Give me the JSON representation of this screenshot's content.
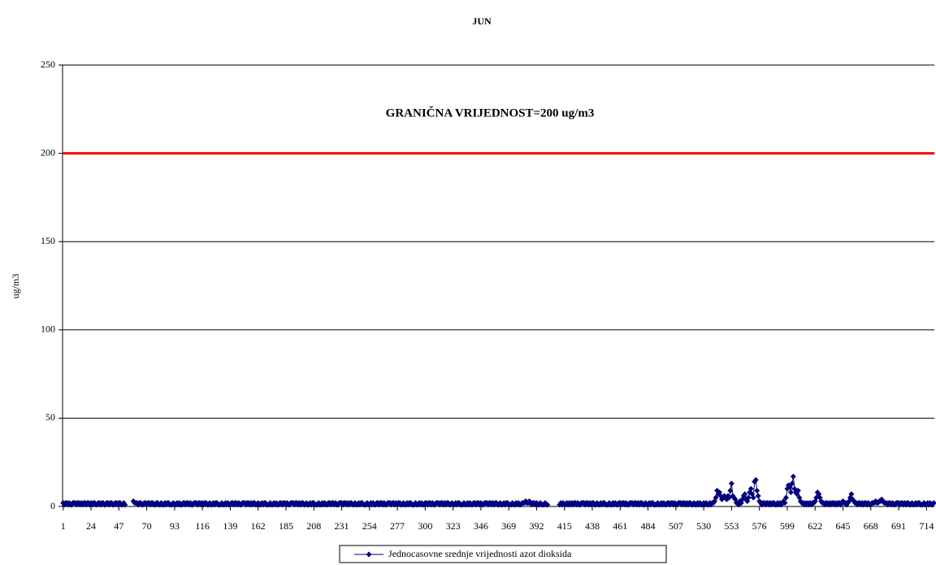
{
  "chart_data": {
    "type": "line",
    "title": "JUN",
    "ylabel": "ug/m3",
    "annotation": "GRANIČNA VRIJEDNOST=200 ug/m3",
    "threshold": 200,
    "threshold_color": "#ff0000",
    "ylim": [
      0,
      250
    ],
    "yticks": [
      0,
      50,
      100,
      150,
      200,
      250
    ],
    "grid": true,
    "xlim": [
      0.5,
      720.5
    ],
    "xticks": [
      1,
      24,
      47,
      70,
      93,
      116,
      139,
      162,
      185,
      208,
      231,
      254,
      277,
      300,
      323,
      346,
      369,
      392,
      415,
      438,
      461,
      484,
      507,
      530,
      553,
      576,
      599,
      622,
      645,
      668,
      691,
      714
    ],
    "x": [
      1,
      2,
      3,
      4,
      5,
      6,
      7,
      8,
      9,
      10,
      11,
      12,
      13,
      14,
      15,
      16,
      17,
      18,
      19,
      20,
      21,
      22,
      23,
      24,
      25,
      26,
      27,
      28,
      29,
      30,
      31,
      32,
      33,
      34,
      35,
      36,
      37,
      38,
      39,
      40,
      41,
      42,
      43,
      44,
      45,
      46,
      47,
      48,
      49,
      50,
      51,
      52,
      53,
      54,
      55,
      56,
      57,
      58,
      59,
      60,
      61,
      62,
      63,
      64,
      65,
      66,
      67,
      68,
      69,
      70,
      71,
      72,
      73,
      74,
      75,
      76,
      77,
      78,
      79,
      80,
      81,
      82,
      83,
      84,
      85,
      86,
      87,
      88,
      89,
      90,
      91,
      92,
      93,
      94,
      95,
      96,
      97,
      98,
      99,
      100,
      101,
      102,
      103,
      104,
      105,
      106,
      107,
      108,
      109,
      110,
      111,
      112,
      113,
      114,
      115,
      116,
      117,
      118,
      119,
      120,
      121,
      122,
      123,
      124,
      125,
      126,
      127,
      128,
      129,
      130,
      131,
      132,
      133,
      134,
      135,
      136,
      137,
      138,
      139,
      140,
      141,
      142,
      143,
      144,
      145,
      146,
      147,
      148,
      149,
      150,
      151,
      152,
      153,
      154,
      155,
      156,
      157,
      158,
      159,
      160,
      161,
      162,
      163,
      164,
      165,
      166,
      167,
      168,
      169,
      170,
      171,
      172,
      173,
      174,
      175,
      176,
      177,
      178,
      179,
      180,
      181,
      182,
      183,
      184,
      185,
      186,
      187,
      188,
      189,
      190,
      191,
      192,
      193,
      194,
      195,
      196,
      197,
      198,
      199,
      200,
      201,
      202,
      203,
      204,
      205,
      206,
      207,
      208,
      209,
      210,
      211,
      212,
      213,
      214,
      215,
      216,
      217,
      218,
      219,
      220,
      221,
      222,
      223,
      224,
      225,
      226,
      227,
      228,
      229,
      230,
      231,
      232,
      233,
      234,
      235,
      236,
      237,
      238,
      239,
      240,
      241,
      242,
      243,
      244,
      245,
      246,
      247,
      248,
      249,
      250,
      251,
      252,
      253,
      254,
      255,
      256,
      257,
      258,
      259,
      260,
      261,
      262,
      263,
      264,
      265,
      266,
      267,
      268,
      269,
      270,
      271,
      272,
      273,
      274,
      275,
      276,
      277,
      278,
      279,
      280,
      281,
      282,
      283,
      284,
      285,
      286,
      287,
      288,
      289,
      290,
      291,
      292,
      293,
      294,
      295,
      296,
      297,
      298,
      299,
      300,
      301,
      302,
      303,
      304,
      305,
      306,
      307,
      308,
      309,
      310,
      311,
      312,
      313,
      314,
      315,
      316,
      317,
      318,
      319,
      320,
      321,
      322,
      323,
      324,
      325,
      326,
      327,
      328,
      329,
      330,
      331,
      332,
      333,
      334,
      335,
      336,
      337,
      338,
      339,
      340,
      341,
      342,
      343,
      344,
      345,
      346,
      347,
      348,
      349,
      350,
      351,
      352,
      353,
      354,
      355,
      356,
      357,
      358,
      359,
      360,
      361,
      362,
      363,
      364,
      365,
      366,
      367,
      368,
      369,
      370,
      371,
      372,
      373,
      374,
      375,
      376,
      377,
      378,
      379,
      380,
      381,
      382,
      383,
      384,
      385,
      386,
      387,
      388,
      389,
      390,
      391,
      392,
      393,
      394,
      395,
      396,
      397,
      398,
      399,
      400,
      401,
      402,
      403,
      404,
      405,
      406,
      407,
      408,
      409,
      410,
      411,
      412,
      413,
      414,
      415,
      416,
      417,
      418,
      419,
      420,
      421,
      422,
      423,
      424,
      425,
      426,
      427,
      428,
      429,
      430,
      431,
      432,
      433,
      434,
      435,
      436,
      437,
      438,
      439,
      440,
      441,
      442,
      443,
      444,
      445,
      446,
      447,
      448,
      449,
      450,
      451,
      452,
      453,
      454,
      455,
      456,
      457,
      458,
      459,
      460,
      461,
      462,
      463,
      464,
      465,
      466,
      467,
      468,
      469,
      470,
      471,
      472,
      473,
      474,
      475,
      476,
      477,
      478,
      479,
      480,
      481,
      482,
      483,
      484,
      485,
      486,
      487,
      488,
      489,
      490,
      491,
      492,
      493,
      494,
      495,
      496,
      497,
      498,
      499,
      500,
      501,
      502,
      503,
      504,
      505,
      506,
      507,
      508,
      509,
      510,
      511,
      512,
      513,
      514,
      515,
      516,
      517,
      518,
      519,
      520,
      521,
      522,
      523,
      524,
      525,
      526,
      527,
      528,
      529,
      530,
      531,
      532,
      533,
      534,
      535,
      536,
      537,
      538,
      539,
      540,
      541,
      542,
      543,
      544,
      545,
      546,
      547,
      548,
      549,
      550,
      551,
      552,
      553,
      554,
      555,
      556,
      557,
      558,
      559,
      560,
      561,
      562,
      563,
      564,
      565,
      566,
      567,
      568,
      569,
      570,
      571,
      572,
      573,
      574,
      575,
      576,
      577,
      578,
      579,
      580,
      581,
      582,
      583,
      584,
      585,
      586,
      587,
      588,
      589,
      590,
      591,
      592,
      593,
      594,
      595,
      596,
      597,
      598,
      599,
      600,
      601,
      602,
      603,
      604,
      605,
      606,
      607,
      608,
      609,
      610,
      611,
      612,
      613,
      614,
      615,
      616,
      617,
      618,
      619,
      620,
      621,
      622,
      623,
      624,
      625,
      626,
      627,
      628,
      629,
      630,
      631,
      632,
      633,
      634,
      635,
      636,
      637,
      638,
      639,
      640,
      641,
      642,
      643,
      644,
      645,
      646,
      647,
      648,
      649,
      650,
      651,
      652,
      653,
      654,
      655,
      656,
      657,
      658,
      659,
      660,
      661,
      662,
      663,
      664,
      665,
      666,
      667,
      668,
      669,
      670,
      671,
      672,
      673,
      674,
      675,
      676,
      677,
      678,
      679,
      680,
      681,
      682,
      683,
      684,
      685,
      686,
      687,
      688,
      689,
      690,
      691,
      692,
      693,
      694,
      695,
      696,
      697,
      698,
      699,
      700,
      701,
      702,
      703,
      704,
      705,
      706,
      707,
      708,
      709,
      710,
      711,
      712,
      713,
      714,
      715,
      716,
      717,
      718,
      719,
      720
    ],
    "series": [
      {
        "name": "Jednocasovne srednje vrijednosti azot dioksida",
        "color": "#000080",
        "values": [
          2,
          1,
          2,
          2,
          1,
          2,
          1,
          1,
          2,
          2,
          2,
          1,
          2,
          2,
          1,
          2,
          1,
          2,
          2,
          1,
          2,
          2,
          1,
          2,
          1,
          2,
          2,
          1,
          1,
          2,
          2,
          1,
          2,
          2,
          1,
          1,
          2,
          2,
          1,
          2,
          2,
          1,
          1,
          2,
          2,
          1,
          2,
          2,
          1,
          1,
          2,
          1,
          null,
          null,
          null,
          null,
          null,
          null,
          3,
          2,
          2,
          2,
          1,
          2,
          2,
          1,
          1,
          2,
          2,
          1,
          2,
          2,
          1,
          2,
          2,
          1,
          1,
          2,
          2,
          1,
          1,
          2,
          1,
          1,
          2,
          1,
          2,
          2,
          1,
          1,
          1,
          2,
          1,
          1,
          2,
          1,
          2,
          1,
          1,
          2,
          2,
          1,
          2,
          2,
          1,
          2,
          1,
          1,
          2,
          2,
          2,
          1,
          2,
          2,
          1,
          2,
          1,
          2,
          2,
          1,
          1,
          2,
          1,
          1,
          2,
          1,
          2,
          2,
          1,
          1,
          1,
          2,
          1,
          1,
          2,
          1,
          2,
          1,
          1,
          2,
          2,
          1,
          2,
          2,
          1,
          2,
          1,
          1,
          2,
          2,
          2,
          1,
          2,
          2,
          1,
          2,
          1,
          2,
          2,
          1,
          1,
          2,
          1,
          1,
          2,
          1,
          2,
          2,
          1,
          1,
          1,
          2,
          1,
          1,
          2,
          1,
          2,
          1,
          1,
          2,
          2,
          1,
          2,
          2,
          1,
          2,
          1,
          1,
          2,
          2,
          2,
          1,
          2,
          2,
          1,
          2,
          1,
          2,
          2,
          1,
          1,
          2,
          1,
          1,
          2,
          1,
          2,
          2,
          1,
          1,
          1,
          2,
          1,
          1,
          2,
          1,
          2,
          1,
          1,
          2,
          2,
          1,
          2,
          2,
          1,
          2,
          1,
          1,
          2,
          2,
          2,
          1,
          2,
          2,
          1,
          2,
          1,
          2,
          2,
          1,
          1,
          2,
          1,
          1,
          2,
          1,
          2,
          2,
          1,
          1,
          1,
          2,
          1,
          1,
          2,
          1,
          2,
          1,
          1,
          2,
          2,
          1,
          2,
          2,
          1,
          2,
          1,
          1,
          2,
          2,
          2,
          1,
          2,
          2,
          1,
          2,
          1,
          2,
          2,
          1,
          1,
          2,
          1,
          1,
          2,
          1,
          2,
          2,
          1,
          1,
          1,
          2,
          1,
          1,
          2,
          1,
          2,
          1,
          1,
          2,
          2,
          1,
          2,
          2,
          1,
          2,
          1,
          1,
          2,
          2,
          2,
          1,
          2,
          2,
          1,
          2,
          1,
          2,
          2,
          1,
          1,
          2,
          1,
          1,
          2,
          1,
          2,
          2,
          1,
          1,
          1,
          2,
          1,
          1,
          2,
          1,
          2,
          1,
          1,
          2,
          2,
          1,
          2,
          2,
          1,
          2,
          1,
          1,
          2,
          2,
          2,
          1,
          2,
          2,
          1,
          2,
          1,
          2,
          2,
          1,
          1,
          2,
          1,
          1,
          2,
          1,
          2,
          2,
          1,
          1,
          1,
          2,
          1,
          1,
          2,
          1,
          2,
          1,
          1,
          2,
          2,
          2,
          3,
          2,
          2,
          3,
          2,
          1,
          2,
          2,
          1,
          2,
          1,
          1,
          2,
          1,
          1,
          1,
          2,
          1,
          1,
          null,
          null,
          null,
          null,
          null,
          null,
          null,
          null,
          null,
          1,
          2,
          1,
          2,
          1,
          1,
          2,
          1,
          2,
          1,
          2,
          1,
          2,
          2,
          1,
          2,
          1,
          1,
          2,
          2,
          2,
          1,
          2,
          2,
          1,
          2,
          1,
          2,
          2,
          1,
          1,
          2,
          1,
          1,
          2,
          1,
          2,
          2,
          1,
          1,
          1,
          2,
          1,
          1,
          2,
          1,
          2,
          1,
          1,
          2,
          2,
          1,
          2,
          2,
          1,
          2,
          1,
          1,
          2,
          2,
          2,
          1,
          2,
          2,
          1,
          2,
          1,
          2,
          2,
          1,
          1,
          2,
          1,
          1,
          2,
          1,
          2,
          2,
          1,
          1,
          1,
          2,
          1,
          1,
          2,
          1,
          2,
          1,
          1,
          2,
          2,
          1,
          2,
          2,
          1,
          2,
          1,
          1,
          2,
          2,
          2,
          1,
          2,
          2,
          1,
          2,
          1,
          2,
          2,
          1,
          1,
          2,
          1,
          1,
          2,
          1,
          2,
          1,
          1,
          2,
          1,
          2,
          1,
          1,
          2,
          1,
          2,
          2,
          3,
          5,
          9,
          7,
          8,
          6,
          4,
          5,
          6,
          5,
          4,
          6,
          5,
          9,
          13,
          6,
          5,
          4,
          2,
          2,
          1,
          3,
          2,
          4,
          6,
          7,
          4,
          3,
          5,
          8,
          10,
          7,
          5,
          14,
          15,
          9,
          6,
          3,
          2,
          1,
          2,
          2,
          1,
          2,
          2,
          1,
          2,
          1,
          2,
          2,
          1,
          1,
          2,
          1,
          2,
          1,
          2,
          3,
          2,
          5,
          10,
          12,
          11,
          8,
          13,
          17,
          10,
          8,
          7,
          9,
          5,
          3,
          2,
          2,
          1,
          2,
          1,
          2,
          1,
          2,
          1,
          2,
          2,
          3,
          5,
          8,
          7,
          5,
          3,
          2,
          2,
          1,
          2,
          2,
          1,
          2,
          1,
          2,
          2,
          1,
          2,
          1,
          2,
          2,
          1,
          2,
          3,
          2,
          2,
          1,
          2,
          3,
          5,
          7,
          4,
          3,
          2,
          2,
          1,
          2,
          2,
          1,
          2,
          1,
          2,
          2,
          1,
          2,
          1,
          1,
          2,
          2,
          2,
          3,
          2,
          2,
          3,
          3,
          4,
          3,
          2,
          2,
          2,
          1,
          2,
          2,
          1,
          2,
          1,
          1,
          2,
          2,
          2,
          1,
          2,
          2,
          1,
          2,
          1,
          2,
          2,
          1,
          1,
          2,
          1,
          1,
          2,
          1,
          2,
          2,
          1,
          1,
          1,
          2,
          1,
          1,
          2,
          1,
          2,
          1,
          1,
          2
        ]
      }
    ]
  }
}
